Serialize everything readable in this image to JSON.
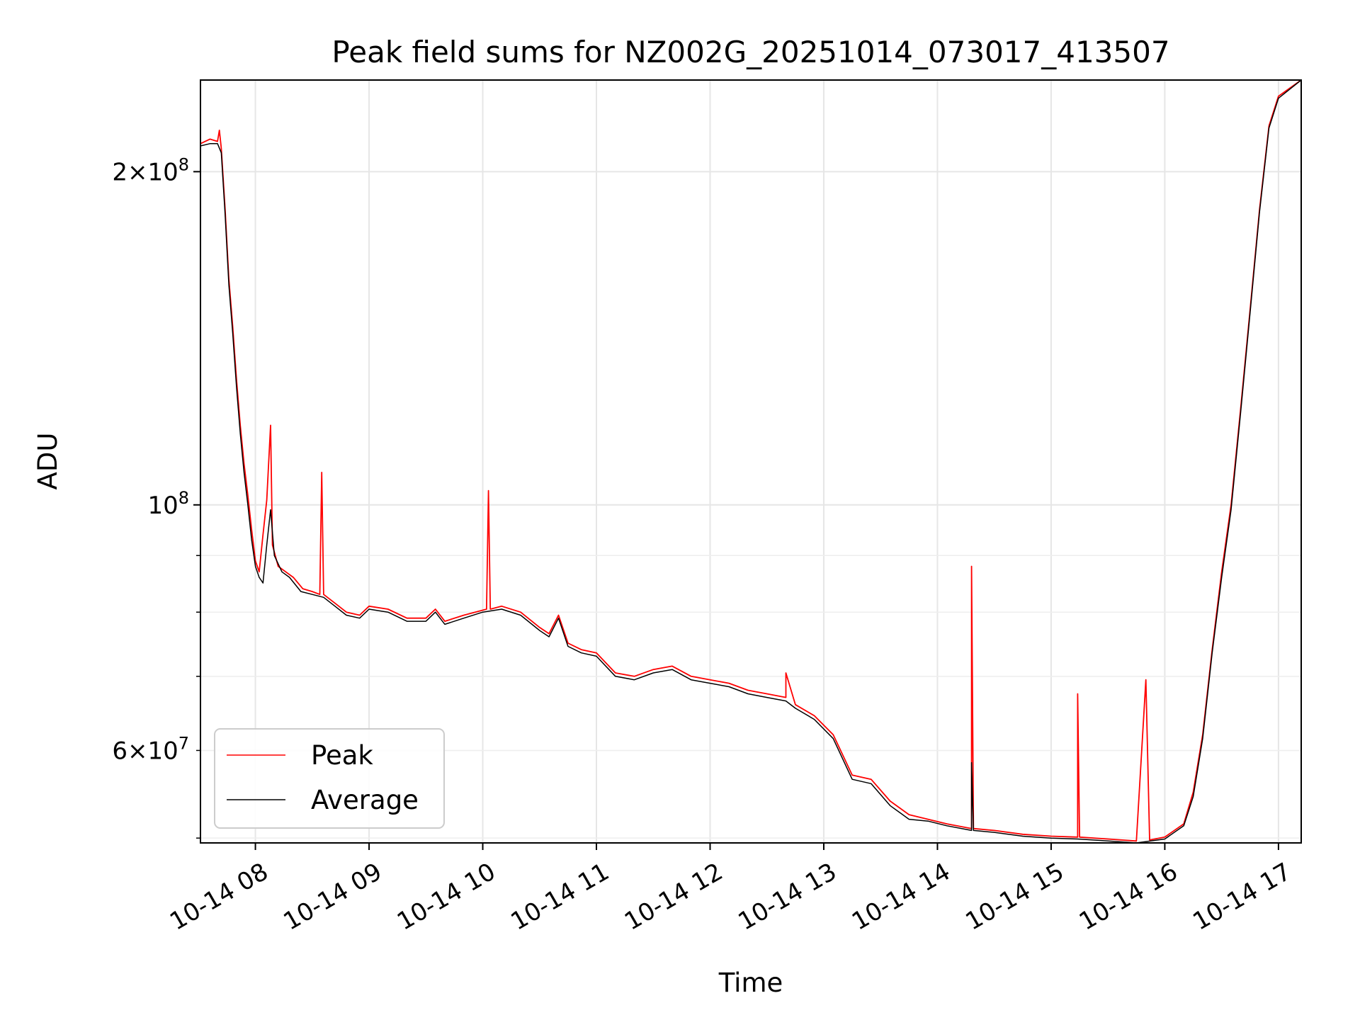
{
  "chart_data": {
    "type": "line",
    "title": "Peak field sums for NZ002G_20251014_073017_413507",
    "xlabel": "Time",
    "ylabel": "ADU",
    "x_scale": "time",
    "y_scale": "log",
    "xlim": [
      "2025-10-14T07:31",
      "2025-10-14T17:12"
    ],
    "ylim": [
      49500000,
      242000000
    ],
    "x_ticks": [
      {
        "value": "2025-10-14T08:00",
        "label": "10-14 08"
      },
      {
        "value": "2025-10-14T09:00",
        "label": "10-14 09"
      },
      {
        "value": "2025-10-14T10:00",
        "label": "10-14 10"
      },
      {
        "value": "2025-10-14T11:00",
        "label": "10-14 11"
      },
      {
        "value": "2025-10-14T12:00",
        "label": "10-14 12"
      },
      {
        "value": "2025-10-14T13:00",
        "label": "10-14 13"
      },
      {
        "value": "2025-10-14T14:00",
        "label": "10-14 14"
      },
      {
        "value": "2025-10-14T15:00",
        "label": "10-14 15"
      },
      {
        "value": "2025-10-14T16:00",
        "label": "10-14 16"
      },
      {
        "value": "2025-10-14T17:00",
        "label": "10-14 17"
      }
    ],
    "y_ticks_major": [
      {
        "value": 100000000,
        "base": "10",
        "exp": "8",
        "mant": ""
      },
      {
        "value": 200000000,
        "base": "10",
        "exp": "8",
        "mant": "2"
      }
    ],
    "y_ticks_minor": [
      {
        "value": 50000000,
        "label": ""
      },
      {
        "value": 60000000,
        "base": "10",
        "exp": "7",
        "mant": "6"
      },
      {
        "value": 70000000,
        "label": ""
      },
      {
        "value": 80000000,
        "label": ""
      },
      {
        "value": 90000000,
        "label": ""
      }
    ],
    "grid": true,
    "legend_position": "lower-left",
    "series": [
      {
        "name": "Peak",
        "color": "#ff0000",
        "points": [
          [
            "2025-10-14T07:31",
            212000000
          ],
          [
            "2025-10-14T07:36",
            214000000
          ],
          [
            "2025-10-14T07:40",
            213000000
          ],
          [
            "2025-10-14T07:41",
            218000000
          ],
          [
            "2025-10-14T07:42",
            210000000
          ],
          [
            "2025-10-14T07:44",
            185000000
          ],
          [
            "2025-10-14T07:46",
            160000000
          ],
          [
            "2025-10-14T07:48",
            145000000
          ],
          [
            "2025-10-14T07:50",
            130000000
          ],
          [
            "2025-10-14T07:52",
            118000000
          ],
          [
            "2025-10-14T07:54",
            109000000
          ],
          [
            "2025-10-14T07:56",
            102000000
          ],
          [
            "2025-10-14T07:58",
            95000000
          ],
          [
            "2025-10-14T08:00",
            89000000
          ],
          [
            "2025-10-14T08:02",
            87000000
          ],
          [
            "2025-10-14T08:04",
            94000000
          ],
          [
            "2025-10-14T08:06",
            101000000
          ],
          [
            "2025-10-14T08:08",
            118000000
          ],
          [
            "2025-10-14T08:09",
            92000000
          ],
          [
            "2025-10-14T08:12",
            88000000
          ],
          [
            "2025-10-14T08:16",
            87000000
          ],
          [
            "2025-10-14T08:20",
            86000000
          ],
          [
            "2025-10-14T08:25",
            84000000
          ],
          [
            "2025-10-14T08:30",
            83500000
          ],
          [
            "2025-10-14T08:34",
            83000000
          ],
          [
            "2025-10-14T08:35",
            107000000
          ],
          [
            "2025-10-14T08:36",
            83000000
          ],
          [
            "2025-10-14T08:42",
            81500000
          ],
          [
            "2025-10-14T08:48",
            80000000
          ],
          [
            "2025-10-14T08:55",
            79500000
          ],
          [
            "2025-10-14T09:00",
            81000000
          ],
          [
            "2025-10-14T09:10",
            80500000
          ],
          [
            "2025-10-14T09:20",
            79000000
          ],
          [
            "2025-10-14T09:30",
            79000000
          ],
          [
            "2025-10-14T09:35",
            80500000
          ],
          [
            "2025-10-14T09:40",
            78500000
          ],
          [
            "2025-10-14T09:50",
            79500000
          ],
          [
            "2025-10-14T10:02",
            80500000
          ],
          [
            "2025-10-14T10:03",
            103000000
          ],
          [
            "2025-10-14T10:04",
            80500000
          ],
          [
            "2025-10-14T10:10",
            81000000
          ],
          [
            "2025-10-14T10:20",
            80000000
          ],
          [
            "2025-10-14T10:30",
            77500000
          ],
          [
            "2025-10-14T10:35",
            76500000
          ],
          [
            "2025-10-14T10:40",
            79500000
          ],
          [
            "2025-10-14T10:45",
            75000000
          ],
          [
            "2025-10-14T10:52",
            74000000
          ],
          [
            "2025-10-14T11:00",
            73500000
          ],
          [
            "2025-10-14T11:10",
            70500000
          ],
          [
            "2025-10-14T11:20",
            70000000
          ],
          [
            "2025-10-14T11:30",
            71000000
          ],
          [
            "2025-10-14T11:40",
            71500000
          ],
          [
            "2025-10-14T11:50",
            70000000
          ],
          [
            "2025-10-14T12:00",
            69500000
          ],
          [
            "2025-10-14T12:10",
            69000000
          ],
          [
            "2025-10-14T12:20",
            68000000
          ],
          [
            "2025-10-14T12:30",
            67500000
          ],
          [
            "2025-10-14T12:40",
            67000000
          ],
          [
            "2025-10-14T12:40",
            70500000
          ],
          [
            "2025-10-14T12:45",
            66000000
          ],
          [
            "2025-10-14T12:55",
            64500000
          ],
          [
            "2025-10-14T13:05",
            62000000
          ],
          [
            "2025-10-14T13:15",
            57000000
          ],
          [
            "2025-10-14T13:25",
            56500000
          ],
          [
            "2025-10-14T13:35",
            54000000
          ],
          [
            "2025-10-14T13:45",
            52500000
          ],
          [
            "2025-10-14T13:55",
            52000000
          ],
          [
            "2025-10-14T14:05",
            51500000
          ],
          [
            "2025-10-14T14:18",
            51000000
          ],
          [
            "2025-10-14T14:18",
            88000000
          ],
          [
            "2025-10-14T14:19",
            51000000
          ],
          [
            "2025-10-14T14:30",
            50800000
          ],
          [
            "2025-10-14T14:45",
            50400000
          ],
          [
            "2025-10-14T15:00",
            50200000
          ],
          [
            "2025-10-14T15:14",
            50100000
          ],
          [
            "2025-10-14T15:14",
            67500000
          ],
          [
            "2025-10-14T15:15",
            50100000
          ],
          [
            "2025-10-14T15:30",
            49900000
          ],
          [
            "2025-10-14T15:45",
            49700000
          ],
          [
            "2025-10-14T15:50",
            69500000
          ],
          [
            "2025-10-14T15:52",
            49800000
          ],
          [
            "2025-10-14T16:00",
            50100000
          ],
          [
            "2025-10-14T16:10",
            51500000
          ],
          [
            "2025-10-14T16:15",
            55000000
          ],
          [
            "2025-10-14T16:20",
            62000000
          ],
          [
            "2025-10-14T16:25",
            74000000
          ],
          [
            "2025-10-14T16:30",
            87000000
          ],
          [
            "2025-10-14T16:35",
            100000000
          ],
          [
            "2025-10-14T16:40",
            122000000
          ],
          [
            "2025-10-14T16:45",
            150000000
          ],
          [
            "2025-10-14T16:50",
            185000000
          ],
          [
            "2025-10-14T16:55",
            220000000
          ],
          [
            "2025-10-14T17:00",
            234000000
          ],
          [
            "2025-10-14T17:12",
            242000000
          ]
        ]
      },
      {
        "name": "Average",
        "color": "#000000",
        "points": [
          [
            "2025-10-14T07:31",
            211000000
          ],
          [
            "2025-10-14T07:36",
            212000000
          ],
          [
            "2025-10-14T07:40",
            212000000
          ],
          [
            "2025-10-14T07:42",
            208000000
          ],
          [
            "2025-10-14T07:44",
            183000000
          ],
          [
            "2025-10-14T07:46",
            158000000
          ],
          [
            "2025-10-14T07:48",
            143000000
          ],
          [
            "2025-10-14T07:50",
            128000000
          ],
          [
            "2025-10-14T07:52",
            116000000
          ],
          [
            "2025-10-14T07:54",
            107000000
          ],
          [
            "2025-10-14T07:56",
            100000000
          ],
          [
            "2025-10-14T07:58",
            93000000
          ],
          [
            "2025-10-14T08:00",
            88000000
          ],
          [
            "2025-10-14T08:02",
            86000000
          ],
          [
            "2025-10-14T08:04",
            85000000
          ],
          [
            "2025-10-14T08:06",
            92000000
          ],
          [
            "2025-10-14T08:08",
            99000000
          ],
          [
            "2025-10-14T08:10",
            90000000
          ],
          [
            "2025-10-14T08:14",
            87000000
          ],
          [
            "2025-10-14T08:18",
            86000000
          ],
          [
            "2025-10-14T08:24",
            83500000
          ],
          [
            "2025-10-14T08:30",
            83000000
          ],
          [
            "2025-10-14T08:36",
            82500000
          ],
          [
            "2025-10-14T08:42",
            81000000
          ],
          [
            "2025-10-14T08:48",
            79500000
          ],
          [
            "2025-10-14T08:55",
            79000000
          ],
          [
            "2025-10-14T09:00",
            80500000
          ],
          [
            "2025-10-14T09:10",
            80000000
          ],
          [
            "2025-10-14T09:20",
            78500000
          ],
          [
            "2025-10-14T09:30",
            78500000
          ],
          [
            "2025-10-14T09:35",
            80000000
          ],
          [
            "2025-10-14T09:40",
            78000000
          ],
          [
            "2025-10-14T09:50",
            79000000
          ],
          [
            "2025-10-14T10:00",
            80000000
          ],
          [
            "2025-10-14T10:10",
            80500000
          ],
          [
            "2025-10-14T10:20",
            79500000
          ],
          [
            "2025-10-14T10:30",
            77000000
          ],
          [
            "2025-10-14T10:35",
            76000000
          ],
          [
            "2025-10-14T10:40",
            79000000
          ],
          [
            "2025-10-14T10:45",
            74500000
          ],
          [
            "2025-10-14T10:52",
            73500000
          ],
          [
            "2025-10-14T11:00",
            73000000
          ],
          [
            "2025-10-14T11:10",
            70000000
          ],
          [
            "2025-10-14T11:20",
            69500000
          ],
          [
            "2025-10-14T11:30",
            70500000
          ],
          [
            "2025-10-14T11:40",
            71000000
          ],
          [
            "2025-10-14T11:50",
            69500000
          ],
          [
            "2025-10-14T12:00",
            69000000
          ],
          [
            "2025-10-14T12:10",
            68500000
          ],
          [
            "2025-10-14T12:20",
            67500000
          ],
          [
            "2025-10-14T12:30",
            67000000
          ],
          [
            "2025-10-14T12:40",
            66500000
          ],
          [
            "2025-10-14T12:45",
            65500000
          ],
          [
            "2025-10-14T12:55",
            64000000
          ],
          [
            "2025-10-14T13:05",
            61500000
          ],
          [
            "2025-10-14T13:15",
            56500000
          ],
          [
            "2025-10-14T13:25",
            56000000
          ],
          [
            "2025-10-14T13:35",
            53500000
          ],
          [
            "2025-10-14T13:45",
            52000000
          ],
          [
            "2025-10-14T13:55",
            51800000
          ],
          [
            "2025-10-14T14:05",
            51300000
          ],
          [
            "2025-10-14T14:18",
            50800000
          ],
          [
            "2025-10-14T14:18",
            58500000
          ],
          [
            "2025-10-14T14:19",
            50800000
          ],
          [
            "2025-10-14T14:30",
            50600000
          ],
          [
            "2025-10-14T14:45",
            50200000
          ],
          [
            "2025-10-14T15:00",
            50000000
          ],
          [
            "2025-10-14T15:14",
            49900000
          ],
          [
            "2025-10-14T15:30",
            49700000
          ],
          [
            "2025-10-14T15:45",
            49500000
          ],
          [
            "2025-10-14T16:00",
            49900000
          ],
          [
            "2025-10-14T16:10",
            51300000
          ],
          [
            "2025-10-14T16:15",
            54500000
          ],
          [
            "2025-10-14T16:20",
            61500000
          ],
          [
            "2025-10-14T16:25",
            73500000
          ],
          [
            "2025-10-14T16:30",
            86000000
          ],
          [
            "2025-10-14T16:35",
            99000000
          ],
          [
            "2025-10-14T16:40",
            121000000
          ],
          [
            "2025-10-14T16:45",
            149000000
          ],
          [
            "2025-10-14T16:50",
            184000000
          ],
          [
            "2025-10-14T16:55",
            219000000
          ],
          [
            "2025-10-14T17:00",
            233000000
          ],
          [
            "2025-10-14T17:12",
            242000000
          ]
        ]
      }
    ]
  }
}
